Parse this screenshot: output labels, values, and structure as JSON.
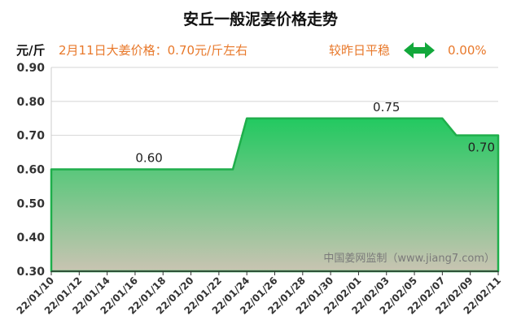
{
  "chart_data": {
    "type": "area",
    "title": "安丘一般泥姜价格走势",
    "unit_label": "元/斤",
    "price_note": "2月11日大姜价格：0.70元/斤左右",
    "trend_label": "较昨日平稳",
    "trend_change": "0.00%",
    "watermark": "中国姜网监制（www.jiang7.com）",
    "x": [
      "22/01/10",
      "22/01/11",
      "22/01/12",
      "22/01/13",
      "22/01/14",
      "22/01/15",
      "22/01/16",
      "22/01/17",
      "22/01/18",
      "22/01/19",
      "22/01/20",
      "22/01/21",
      "22/01/22",
      "22/01/23",
      "22/01/24",
      "22/01/25",
      "22/01/26",
      "22/01/27",
      "22/01/28",
      "22/01/29",
      "22/01/30",
      "22/01/31",
      "22/02/01",
      "22/02/02",
      "22/02/03",
      "22/02/04",
      "22/02/05",
      "22/02/06",
      "22/02/07",
      "22/02/08",
      "22/02/09",
      "22/02/10",
      "22/02/11"
    ],
    "x_tick_labels": [
      "22/01/10",
      "22/01/12",
      "22/01/14",
      "22/01/16",
      "22/01/18",
      "22/01/20",
      "22/01/22",
      "22/01/24",
      "22/01/26",
      "22/01/28",
      "22/01/30",
      "22/02/01",
      "22/02/03",
      "22/02/05",
      "22/02/07",
      "22/02/09",
      "22/02/11"
    ],
    "values": [
      0.6,
      0.6,
      0.6,
      0.6,
      0.6,
      0.6,
      0.6,
      0.6,
      0.6,
      0.6,
      0.6,
      0.6,
      0.6,
      0.6,
      0.75,
      0.75,
      0.75,
      0.75,
      0.75,
      0.75,
      0.75,
      0.75,
      0.75,
      0.75,
      0.75,
      0.75,
      0.75,
      0.75,
      0.75,
      0.7,
      0.7,
      0.7,
      0.7
    ],
    "ylim": [
      0.3,
      0.9
    ],
    "yticks": [
      "0.30",
      "0.40",
      "0.50",
      "0.60",
      "0.70",
      "0.80",
      "0.90"
    ],
    "data_labels": [
      {
        "index": 7,
        "value": 0.6,
        "text": "0.60"
      },
      {
        "index": 24,
        "value": 0.75,
        "text": "0.75"
      },
      {
        "index": 32,
        "value": 0.7,
        "text": "0.70"
      }
    ],
    "grid": "horizontal",
    "colors": {
      "line": "#1fae4b",
      "fill_top": "#22c960",
      "fill_bottom": "#c9c4b2",
      "arrow": "#12a83b",
      "accent": "#e8782a"
    }
  }
}
